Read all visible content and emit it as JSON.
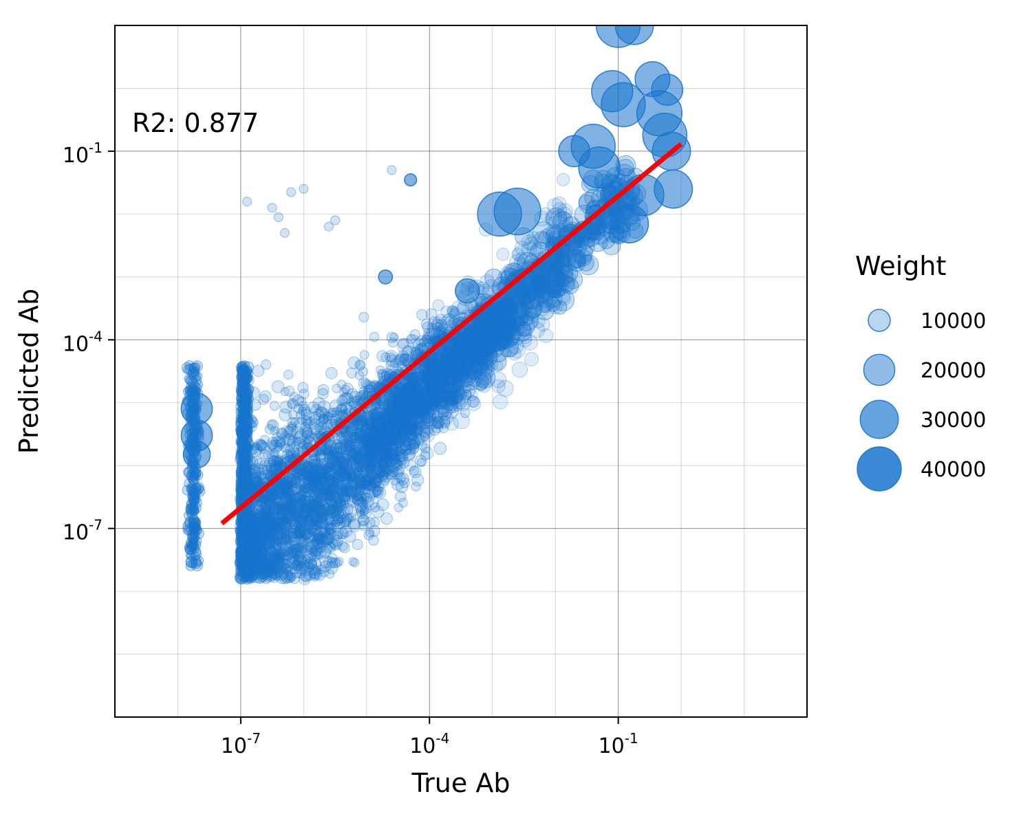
{
  "chart_data": {
    "type": "scatter",
    "title": "",
    "xlabel": "True Ab",
    "ylabel": "Predicted Ab",
    "x_scale": "log",
    "y_scale": "log",
    "xlim": [
      1e-09,
      100.0
    ],
    "ylim": [
      1e-10,
      10.0
    ],
    "x_ticks": [
      {
        "base": "10",
        "exp": "-7"
      },
      {
        "base": "10",
        "exp": "-4"
      },
      {
        "base": "10",
        "exp": "-1"
      }
    ],
    "y_ticks": [
      {
        "base": "10",
        "exp": "-1"
      },
      {
        "base": "10",
        "exp": "-4"
      },
      {
        "base": "10",
        "exp": "-7"
      }
    ],
    "grid": true,
    "annotation": "R2: 0.877",
    "marker_color": "#1874cd",
    "fit_line": {
      "color": "#ff0000",
      "x": [
        5e-08,
        1.0
      ],
      "y": [
        1.2e-07,
        0.13
      ]
    },
    "size_legend": {
      "title": "Weight",
      "placement": "right",
      "entries": [
        {
          "label": "10000",
          "value": 10000
        },
        {
          "label": "20000",
          "value": 20000
        },
        {
          "label": "30000",
          "value": 30000
        },
        {
          "label": "40000",
          "value": 40000
        }
      ]
    },
    "highlighted_points": [
      {
        "x": 0.1,
        "y": 10,
        "weight": 40000
      },
      {
        "x": 0.18,
        "y": 10,
        "weight": 30000
      },
      {
        "x": 0.08,
        "y": 0.9,
        "weight": 35000
      },
      {
        "x": 0.12,
        "y": 0.55,
        "weight": 40000
      },
      {
        "x": 0.35,
        "y": 1.4,
        "weight": 25000
      },
      {
        "x": 0.6,
        "y": 0.95,
        "weight": 20000
      },
      {
        "x": 0.45,
        "y": 0.4,
        "weight": 42000
      },
      {
        "x": 0.55,
        "y": 0.18,
        "weight": 40000
      },
      {
        "x": 0.7,
        "y": 0.1,
        "weight": 30000
      },
      {
        "x": 0.75,
        "y": 0.025,
        "weight": 30000
      },
      {
        "x": 0.25,
        "y": 0.02,
        "weight": 35000
      },
      {
        "x": 0.15,
        "y": 0.007,
        "weight": 30000
      },
      {
        "x": 0.04,
        "y": 0.12,
        "weight": 40000
      },
      {
        "x": 0.05,
        "y": 0.055,
        "weight": 35000
      },
      {
        "x": 0.02,
        "y": 0.1,
        "weight": 20000
      },
      {
        "x": 0.0013,
        "y": 0.01,
        "weight": 40000
      },
      {
        "x": 0.0025,
        "y": 0.011,
        "weight": 45000
      },
      {
        "x": 0.003,
        "y": 0.0007,
        "weight": 25000
      },
      {
        "x": 0.0004,
        "y": 0.0006,
        "weight": 12000
      },
      {
        "x": 5e-05,
        "y": 0.035,
        "weight": 3000
      },
      {
        "x": 2e-05,
        "y": 0.001,
        "weight": 4000
      },
      {
        "x": 2e-08,
        "y": 8e-06,
        "weight": 20000
      },
      {
        "x": 2e-08,
        "y": 3e-06,
        "weight": 20000
      },
      {
        "x": 2e-08,
        "y": 1.5e-06,
        "weight": 15000
      }
    ]
  }
}
